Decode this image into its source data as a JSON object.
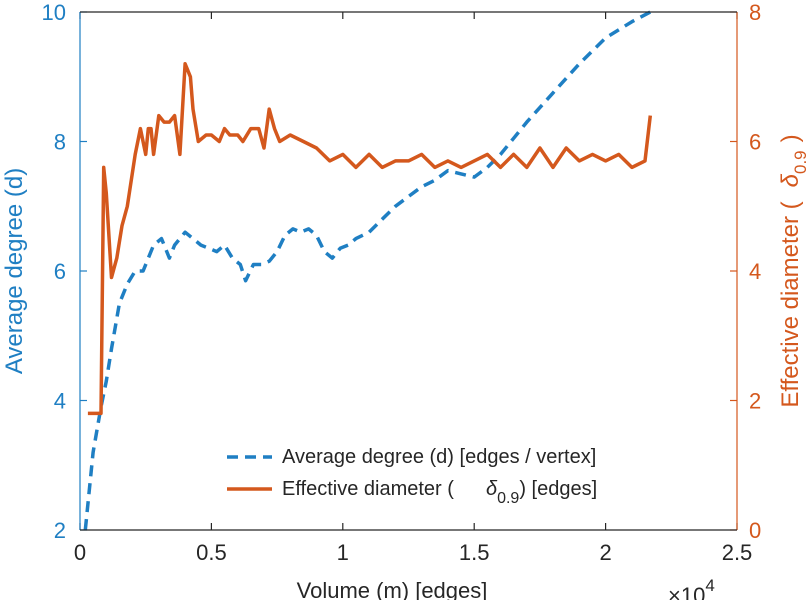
{
  "chart_data": {
    "type": "line",
    "title": "",
    "xlabel": "Volume (m) [edges]",
    "x_multiplier": "×10",
    "x_exponent": "4",
    "xlim": [
      0,
      2.5
    ],
    "x_ticks": [
      "0",
      "0.5",
      "1",
      "1.5",
      "2",
      "2.5"
    ],
    "y_left": {
      "label": "Average degree (d)",
      "lim": [
        2,
        10
      ],
      "ticks": [
        "2",
        "4",
        "6",
        "8",
        "10"
      ],
      "color": "#1f7fc3"
    },
    "y_right": {
      "label_main": "Effective diameter (",
      "label_symbol": "δ",
      "label_sub": "0.9",
      "label_close": ")",
      "lim": [
        0,
        8
      ],
      "ticks": [
        "0",
        "2",
        "4",
        "6",
        "8"
      ],
      "color": "#d4581d"
    },
    "series": [
      {
        "name": "Average degree (d) [edges / vertex]",
        "axis": "left",
        "style": "dashed",
        "color": "#1f7fc3",
        "x": [
          0.02,
          0.05,
          0.08,
          0.1,
          0.12,
          0.15,
          0.18,
          0.21,
          0.24,
          0.26,
          0.28,
          0.31,
          0.34,
          0.36,
          0.38,
          0.4,
          0.43,
          0.46,
          0.49,
          0.52,
          0.55,
          0.58,
          0.61,
          0.63,
          0.66,
          0.69,
          0.72,
          0.75,
          0.78,
          0.81,
          0.84,
          0.87,
          0.9,
          0.93,
          0.96,
          0.99,
          1.02,
          1.05,
          1.1,
          1.15,
          1.2,
          1.25,
          1.3,
          1.35,
          1.4,
          1.45,
          1.5,
          1.55,
          1.6,
          1.65,
          1.7,
          1.8,
          1.9,
          2.0,
          2.1,
          2.17
        ],
        "y": [
          2.0,
          3.2,
          3.9,
          4.3,
          4.8,
          5.5,
          5.8,
          6.0,
          6.0,
          6.2,
          6.4,
          6.5,
          6.2,
          6.4,
          6.5,
          6.6,
          6.5,
          6.4,
          6.35,
          6.3,
          6.4,
          6.2,
          6.1,
          5.85,
          6.1,
          6.1,
          6.15,
          6.3,
          6.55,
          6.65,
          6.6,
          6.65,
          6.55,
          6.3,
          6.2,
          6.35,
          6.4,
          6.5,
          6.6,
          6.8,
          7.0,
          7.15,
          7.3,
          7.4,
          7.55,
          7.5,
          7.45,
          7.6,
          7.8,
          8.05,
          8.3,
          8.75,
          9.2,
          9.6,
          9.85,
          10.0
        ]
      },
      {
        "name": "Effective diameter (δ0.9) [edges]",
        "legend_main": "Effective diameter (",
        "legend_symbol": "δ",
        "legend_sub": "0.9",
        "legend_close": ") [edges]",
        "axis": "right",
        "style": "solid",
        "color": "#d4581d",
        "x": [
          0.03,
          0.07,
          0.08,
          0.09,
          0.1,
          0.12,
          0.14,
          0.16,
          0.18,
          0.21,
          0.23,
          0.25,
          0.26,
          0.27,
          0.28,
          0.3,
          0.32,
          0.34,
          0.36,
          0.38,
          0.4,
          0.42,
          0.43,
          0.45,
          0.48,
          0.5,
          0.53,
          0.55,
          0.57,
          0.6,
          0.62,
          0.65,
          0.68,
          0.7,
          0.72,
          0.74,
          0.76,
          0.8,
          0.85,
          0.9,
          0.95,
          1.0,
          1.05,
          1.1,
          1.15,
          1.2,
          1.25,
          1.3,
          1.35,
          1.4,
          1.45,
          1.5,
          1.55,
          1.6,
          1.65,
          1.7,
          1.75,
          1.8,
          1.85,
          1.9,
          1.95,
          2.0,
          2.05,
          2.1,
          2.15,
          2.17
        ],
        "y": [
          1.8,
          1.8,
          1.8,
          5.6,
          5.2,
          3.9,
          4.2,
          4.7,
          5.0,
          5.8,
          6.2,
          5.8,
          6.2,
          6.2,
          5.8,
          6.4,
          6.3,
          6.3,
          6.4,
          5.8,
          7.2,
          7.0,
          6.5,
          6.0,
          6.1,
          6.1,
          6.0,
          6.2,
          6.1,
          6.1,
          6.0,
          6.2,
          6.2,
          5.9,
          6.5,
          6.2,
          6.0,
          6.1,
          6.0,
          5.9,
          5.7,
          5.8,
          5.6,
          5.8,
          5.6,
          5.7,
          5.7,
          5.8,
          5.6,
          5.7,
          5.6,
          5.7,
          5.8,
          5.6,
          5.8,
          5.6,
          5.9,
          5.6,
          5.9,
          5.7,
          5.8,
          5.7,
          5.8,
          5.6,
          5.7,
          6.4
        ]
      }
    ],
    "legend_position": "bottom-right"
  }
}
